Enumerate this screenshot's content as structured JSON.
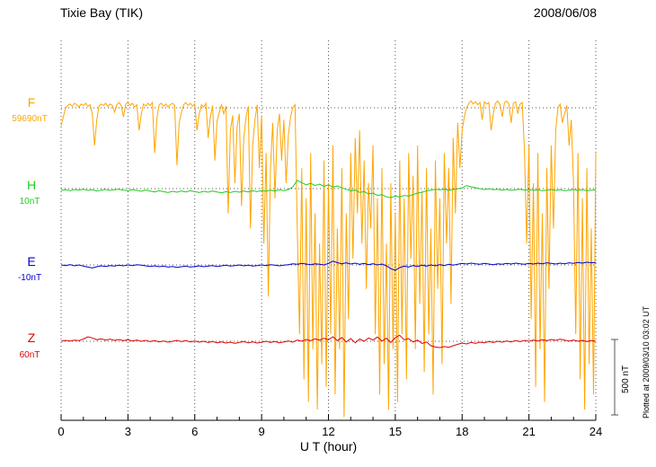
{
  "header": {
    "title": "Tixie Bay (TIK)",
    "date": "2008/06/08"
  },
  "chart_data": {
    "type": "line",
    "title": "Tixie Bay (TIK)",
    "date_label": "2008/06/08",
    "xlabel": "U T (hour)",
    "x_range": [
      0,
      24
    ],
    "x_ticks": [
      0,
      3,
      6,
      9,
      12,
      15,
      18,
      21,
      24
    ],
    "x_minor_tick_step": 1,
    "grid": "dotted vertical lines every 3 h; dotted horizontal baseline per trace",
    "legend_position": "left margin, one colored label per trace",
    "scale_bar": {
      "label": "500 nT",
      "nT": 500
    },
    "plotted_at_note": "Plotted at 2009/03/10 03:02 UT",
    "values_unit": "nT offset from each trace baseline",
    "series": [
      {
        "name": "F",
        "value_label": "59690nT",
        "baseline_nT": 59690,
        "color": "#FFA500",
        "values": [
          -120,
          -60,
          0,
          15,
          25,
          10,
          30,
          20,
          5,
          25,
          15,
          30,
          10,
          20,
          -40,
          -250,
          -80,
          10,
          25,
          15,
          30,
          10,
          25,
          15,
          -30,
          20,
          35,
          15,
          -60,
          25,
          35,
          15,
          30,
          5,
          20,
          -150,
          -40,
          25,
          10,
          30,
          15,
          35,
          -300,
          -70,
          20,
          30,
          10,
          25,
          5,
          20,
          30,
          15,
          -380,
          -100,
          -30,
          20,
          35,
          15,
          30,
          10,
          25,
          -150,
          -40,
          20,
          5,
          30,
          -200,
          -60,
          15,
          -350,
          -90,
          -30,
          20,
          -40,
          10,
          -700,
          -150,
          -50,
          -500,
          -120,
          -40,
          -650,
          -200,
          -60,
          10,
          -800,
          -250,
          -80,
          20,
          -400,
          -50,
          -900,
          -300,
          -1250,
          -400,
          -100,
          -600,
          -150,
          -40,
          -350,
          -80,
          -500,
          -180,
          -60,
          0,
          20,
          -800,
          -1500,
          -400,
          -1800,
          -600,
          -1950,
          -300,
          -1600,
          -700,
          -2000,
          -900,
          -1700,
          -350,
          -1850,
          -500,
          -1500,
          -250,
          -1900,
          -800,
          -1600,
          -400,
          -2050,
          -700,
          -1400,
          -300,
          -1000,
          -200,
          -700,
          -150,
          -900,
          -350,
          -1200,
          -500,
          -800,
          -250,
          -1500,
          -600,
          -1900,
          -400,
          -1700,
          -900,
          -2000,
          -500,
          -1600,
          -700,
          -1950,
          -350,
          -1500,
          -600,
          -1800,
          -300,
          -1000,
          -450,
          -1600,
          -250,
          -1300,
          -550,
          -1750,
          -400,
          -1500,
          -800,
          -1900,
          -350,
          -1200,
          -600,
          -1700,
          -300,
          -900,
          -400,
          -1300,
          -200,
          -700,
          -100,
          -400,
          -150,
          -60,
          0,
          30,
          45,
          25,
          40,
          20,
          35,
          -80,
          40,
          25,
          35,
          -150,
          -40,
          30,
          45,
          20,
          -60,
          35,
          45,
          25,
          -100,
          30,
          40,
          -40,
          25,
          35,
          -300,
          -900,
          -250,
          -1400,
          -500,
          -1850,
          -300,
          -1600,
          -700,
          -1950,
          -400,
          -1200,
          -250,
          -800,
          -150,
          0,
          25,
          -100,
          -40,
          15,
          -250,
          -80,
          -500,
          -1500,
          -300,
          -1800,
          -600,
          -2000,
          -400,
          -1700,
          -800,
          -1900,
          -300
        ]
      },
      {
        "name": "H",
        "value_label": "10nT",
        "baseline_nT": 10,
        "color": "#22CC22",
        "values": [
          -12,
          -8,
          -14,
          -6,
          -10,
          -4,
          -12,
          -8,
          -16,
          -10,
          -6,
          -12,
          -8,
          -4,
          -10,
          -14,
          -8,
          -12,
          -18,
          -10,
          -16,
          -22,
          -14,
          -20,
          -26,
          -18,
          -24,
          -16,
          -22,
          -14,
          -20,
          -26,
          -18,
          -24,
          -16,
          -22,
          -28,
          -20,
          -26,
          -18,
          -24,
          -16,
          -22,
          -14,
          -20,
          -12,
          -18,
          -10,
          -16,
          -8,
          -14,
          -6,
          10,
          55,
          40,
          25,
          35,
          20,
          30,
          15,
          25,
          10,
          18,
          5,
          -5,
          -15,
          -10,
          -25,
          -20,
          -35,
          -30,
          -45,
          -40,
          -55,
          -60,
          -50,
          -55,
          -45,
          -50,
          -40,
          -30,
          -25,
          -15,
          -10,
          -5,
          -8,
          -4,
          -10,
          -6,
          -2,
          5,
          20,
          12,
          6,
          0,
          -6,
          -2,
          -8,
          -4,
          -10,
          -6,
          -12,
          -8,
          -4,
          -10,
          -6,
          -12,
          -8,
          -14,
          -10,
          -6,
          -12,
          -8,
          -14,
          -10,
          -6,
          -12,
          -8,
          -14,
          -10,
          -8
        ]
      },
      {
        "name": "E",
        "value_label": "-10nT",
        "baseline_nT": -10,
        "color": "#0000CC",
        "values": [
          0,
          -4,
          2,
          -6,
          0,
          -8,
          -14,
          -20,
          -12,
          -6,
          -10,
          -4,
          -8,
          -2,
          -6,
          0,
          -4,
          2,
          -2,
          -6,
          -10,
          -6,
          -12,
          -8,
          -14,
          -10,
          -16,
          -12,
          -8,
          -14,
          -10,
          -6,
          -12,
          -8,
          -4,
          -10,
          -6,
          -2,
          -8,
          -4,
          0,
          -6,
          -2,
          -8,
          -4,
          0,
          -4,
          2,
          -2,
          -6,
          -2,
          2,
          8,
          4,
          10,
          6,
          2,
          8,
          4,
          0,
          10,
          25,
          15,
          8,
          14,
          6,
          12,
          4,
          10,
          2,
          8,
          0,
          6,
          -6,
          -25,
          -35,
          -18,
          -8,
          -14,
          -4,
          -10,
          -2,
          -8,
          0,
          -6,
          2,
          -4,
          4,
          -2,
          4,
          10,
          6,
          12,
          8,
          4,
          10,
          6,
          2,
          8,
          4,
          10,
          6,
          12,
          8,
          4,
          10,
          6,
          12,
          8,
          14,
          10,
          6,
          12,
          8,
          14,
          10,
          16,
          12,
          18,
          14,
          16
        ]
      },
      {
        "name": "Z",
        "value_label": "60nT",
        "baseline_nT": 60,
        "color": "#DD0000",
        "values": [
          0,
          6,
          2,
          8,
          4,
          15,
          30,
          22,
          10,
          16,
          8,
          14,
          6,
          12,
          4,
          10,
          2,
          8,
          0,
          6,
          -2,
          4,
          -4,
          2,
          -6,
          0,
          6,
          -2,
          4,
          -4,
          2,
          -6,
          0,
          -8,
          -2,
          -10,
          -4,
          -12,
          -6,
          -14,
          -8,
          -2,
          -10,
          -4,
          -12,
          -6,
          0,
          -8,
          -2,
          -10,
          -4,
          2,
          -6,
          8,
          0,
          12,
          4,
          16,
          8,
          20,
          10,
          30,
          5,
          25,
          -5,
          18,
          -10,
          15,
          0,
          22,
          8,
          28,
          2,
          20,
          -8,
          25,
          40,
          10,
          18,
          -5,
          8,
          -15,
          -5,
          -30,
          -38,
          -42,
          -35,
          -40,
          -30,
          -20,
          -12,
          -18,
          -8,
          -14,
          -6,
          -10,
          -2,
          -8,
          0,
          -6,
          2,
          -4,
          4,
          -2,
          6,
          0,
          8,
          2,
          10,
          4,
          12,
          6,
          14,
          8,
          2,
          8,
          0,
          6,
          -2,
          4,
          0
        ]
      }
    ]
  }
}
